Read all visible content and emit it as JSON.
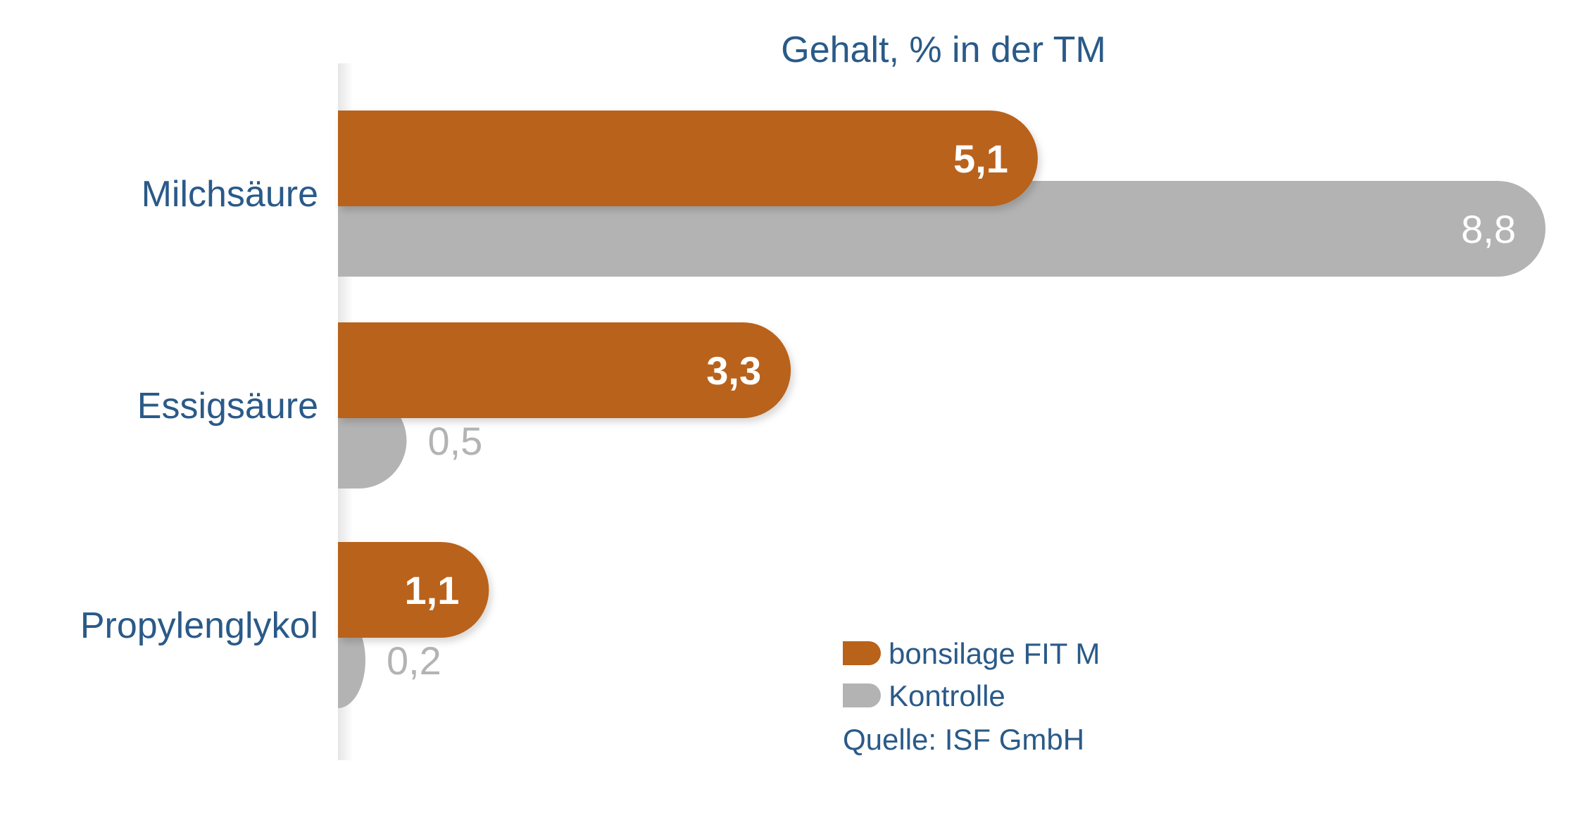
{
  "chart_data": {
    "type": "bar",
    "orientation": "horizontal",
    "title": "Gehalt, % in der TM",
    "categories": [
      "Milchsäure",
      "Essigsäure",
      "Propylenglykol"
    ],
    "series": [
      {
        "name": "bonsilage FIT M",
        "color": "#b9621a",
        "values": [
          5.1,
          3.3,
          1.1
        ],
        "labels": [
          "5,1",
          "3,3",
          "1,1"
        ]
      },
      {
        "name": "Kontrolle",
        "color": "#b3b3b3",
        "values": [
          8.8,
          0.5,
          0.2
        ],
        "labels": [
          "8,8",
          "0,5",
          "0,2"
        ]
      }
    ],
    "xlim": [
      0,
      8.8
    ],
    "grid": false,
    "legend": "bottom-right",
    "source": "Quelle: ISF GmbH"
  }
}
